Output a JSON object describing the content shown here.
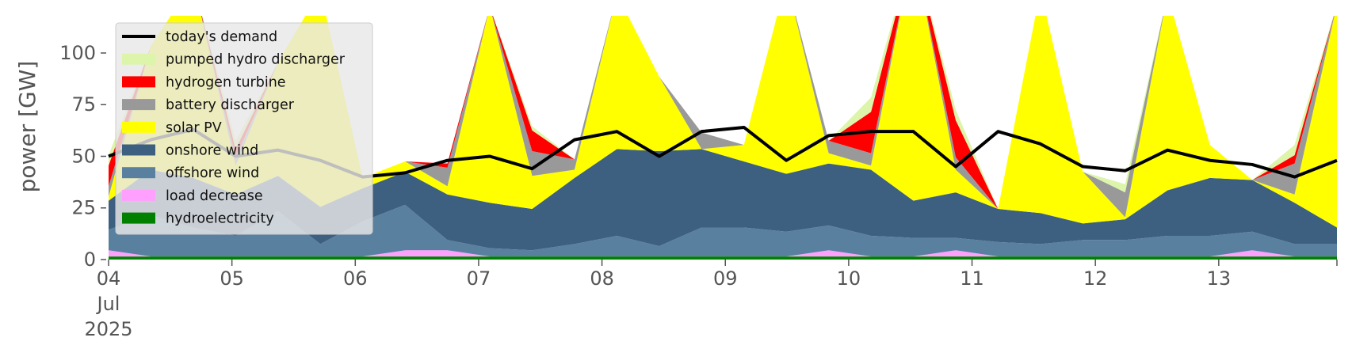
{
  "chart_data": {
    "type": "area",
    "title": "",
    "xlabel": "",
    "ylabel": "power [GW]",
    "ylim": [
      0,
      118
    ],
    "yticks": [
      0,
      25,
      50,
      75,
      100
    ],
    "x_start": "2025-07-04",
    "x_end": "2025-07-13 23:00",
    "x_ticks": [
      {
        "date": "2025-07-04",
        "label": "04",
        "sublabel1": "Jul",
        "sublabel2": "2025"
      },
      {
        "date": "2025-07-05",
        "label": "05"
      },
      {
        "date": "2025-07-06",
        "label": "06"
      },
      {
        "date": "2025-07-07",
        "label": "07"
      },
      {
        "date": "2025-07-08",
        "label": "08"
      },
      {
        "date": "2025-07-09",
        "label": "09"
      },
      {
        "date": "2025-07-10",
        "label": "10"
      },
      {
        "date": "2025-07-11",
        "label": "11"
      },
      {
        "date": "2025-07-12",
        "label": "12"
      },
      {
        "date": "2025-07-13",
        "label": "13"
      }
    ],
    "legend_position": "top-left",
    "series": [
      {
        "name": "hydroelectricity",
        "color": "#008000",
        "values": [
          1.5,
          1.5,
          1.5,
          1.5,
          1.5,
          1.5,
          1.5,
          1.5,
          1.5,
          1.5,
          1.5,
          1.5,
          1.5,
          1.5,
          1.5,
          1.5,
          1.5,
          1.5,
          1.5,
          1.5,
          1.5,
          1.5,
          1.5,
          1.5,
          1.5,
          1.5,
          1.5,
          1.5,
          1.5,
          1.5
        ]
      },
      {
        "name": "load decrease",
        "color": "#ffa0ff",
        "values": [
          3,
          0,
          0,
          0,
          0,
          0,
          0,
          3,
          3,
          0,
          0,
          0,
          0,
          0,
          0,
          0,
          0,
          3,
          0,
          0,
          3,
          0,
          0,
          0,
          0,
          0,
          0,
          3,
          0,
          0
        ]
      },
      {
        "name": "offshore wind",
        "color": "#5a80a0",
        "values": [
          10,
          20,
          14,
          10,
          22,
          6,
          17,
          22,
          5,
          4,
          3,
          6,
          10,
          5,
          14,
          14,
          12,
          12,
          10,
          9,
          6,
          7,
          6,
          8,
          8,
          10,
          10,
          9,
          6,
          6
        ]
      },
      {
        "name": "onshore wind",
        "color": "#3d6080",
        "values": [
          14,
          22,
          24,
          20,
          17,
          18,
          16,
          16,
          22,
          22,
          20,
          32,
          42,
          46,
          38,
          32,
          28,
          30,
          32,
          18,
          22,
          16,
          15,
          8,
          10,
          22,
          28,
          25,
          20,
          8
        ]
      },
      {
        "name": "solar PV",
        "color": "#ffff00",
        "values": [
          2,
          60,
          95,
          14,
          55,
          105,
          5,
          5,
          4,
          95,
          16,
          4,
          75,
          36,
          0,
          8,
          94,
          5,
          2,
          123,
          11,
          0,
          108,
          25,
          1,
          95,
          16,
          0,
          4,
          108
        ]
      },
      {
        "name": "battery discharger",
        "color": "#999999",
        "values": [
          5,
          0,
          0,
          4,
          0,
          0,
          0,
          0,
          9,
          0,
          12,
          5,
          0,
          0,
          8,
          0,
          0,
          6,
          6,
          0,
          6,
          0,
          0,
          0,
          12,
          0,
          0,
          0,
          15,
          0
        ]
      },
      {
        "name": "hydrogen turbine",
        "color": "#ff0000",
        "values": [
          10,
          0,
          0,
          4,
          0,
          0,
          0,
          0,
          2,
          0,
          10,
          0,
          0,
          0,
          0,
          0,
          0,
          0,
          20,
          0,
          18,
          0,
          0,
          0,
          0,
          0,
          0,
          0,
          4,
          0
        ]
      },
      {
        "name": "pumped hydro discharger",
        "color": "#dcf5aa",
        "values": [
          5,
          0,
          0,
          4,
          0,
          0,
          0,
          0,
          0,
          0,
          2,
          0,
          0,
          0,
          0,
          0,
          0,
          0,
          7,
          0,
          5,
          0,
          0,
          0,
          4,
          0,
          0,
          0,
          5,
          0
        ]
      }
    ],
    "line_series": {
      "name": "today's demand",
      "color": "#000000",
      "values": [
        50,
        58,
        63,
        50,
        53,
        48,
        40,
        42,
        48,
        50,
        44,
        58,
        62,
        50,
        62,
        64,
        48,
        60,
        62,
        62,
        45,
        62,
        56,
        45,
        43,
        53,
        48,
        46,
        40,
        48
      ]
    }
  },
  "colors": {
    "axes_background": "#ffffff",
    "legend_background": "#e8e8e8",
    "tick_color": "#555555"
  }
}
